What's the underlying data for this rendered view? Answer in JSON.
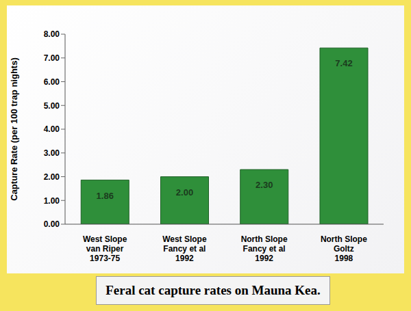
{
  "chart_data": {
    "type": "bar",
    "title": "Feral cat capture rates on Mauna Kea.",
    "y_label": "Capture Rate (per 100 trap nights)",
    "categories": [
      "West Slope\nvan Riper\n1973-75",
      "West Slope\nFancy et al\n1992",
      "North Slope\nFancy et al\n1992",
      "North Slope\nGoltz\n1998"
    ],
    "values": [
      1.86,
      2.0,
      2.3,
      7.42
    ],
    "value_labels": [
      "1.86",
      "2.00",
      "2.30",
      "7.42"
    ],
    "color": "#2f8f3a",
    "ylim": [
      0,
      8
    ],
    "yticks": [
      {
        "value": 0,
        "label": "0.00"
      },
      {
        "value": 1,
        "label": "1.00"
      },
      {
        "value": 2,
        "label": "2.00"
      },
      {
        "value": 3,
        "label": "3.00"
      },
      {
        "value": 4,
        "label": "4.00"
      },
      {
        "value": 5,
        "label": "5.00"
      },
      {
        "value": 6,
        "label": "6.00"
      },
      {
        "value": 7,
        "label": "7.00"
      },
      {
        "value": 8,
        "label": "8.00"
      }
    ],
    "grid": false,
    "data_labels": true
  }
}
